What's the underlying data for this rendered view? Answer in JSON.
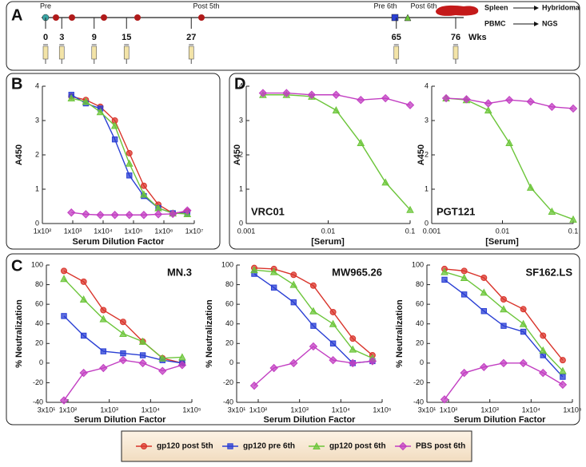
{
  "panel_labels": [
    "A",
    "B",
    "C",
    "D"
  ],
  "timeline": {
    "weeks": [
      0,
      3,
      9,
      15,
      27,
      65,
      76
    ],
    "unit": "Wks",
    "events": [
      {
        "text": "Pre",
        "color": "#3aa6a6"
      },
      {
        "text": "Post 5th",
        "color": "#d0302a"
      },
      {
        "text": "Pre 6th",
        "color": "#2a3fd4"
      },
      {
        "text": "Post 6th",
        "color": "#3e9a2a"
      }
    ],
    "outputs": [
      [
        "Spleen",
        "Hybridoma"
      ],
      [
        "PBMC",
        "NGS"
      ]
    ]
  },
  "legend": [
    {
      "name": "gp120 post 5th",
      "color": "#d9342b",
      "marker": "circle"
    },
    {
      "name": "gp120 pre 6th",
      "color": "#2a3fd4",
      "marker": "square"
    },
    {
      "name": "gp120 post 6th",
      "color": "#6cc53a",
      "marker": "triangle"
    },
    {
      "name": "PBS post 6th",
      "color": "#c23ec2",
      "marker": "diamond"
    }
  ],
  "chart_data": [
    {
      "type": "line",
      "xlog": true,
      "xlabel": "Serum Dilution Factor",
      "ylabel": "A450",
      "xlim": [
        100,
        10000000
      ],
      "ylim": [
        0,
        4
      ],
      "xticks": [
        {
          "value": 100,
          "label": "1x10²"
        },
        {
          "value": 1000,
          "label": "1x10³"
        },
        {
          "value": 10000,
          "label": "1x10⁴"
        },
        {
          "value": 100000,
          "label": "1x10⁵"
        },
        {
          "value": 1000000,
          "label": "1x10⁶"
        },
        {
          "value": 10000000,
          "label": "1x10⁷"
        }
      ],
      "yticks": [
        0,
        1,
        2,
        3,
        4
      ],
      "x": [
        900,
        2700,
        8100,
        24300,
        72900,
        218700,
        656100,
        1968300,
        5904900
      ],
      "series": [
        {
          "color": "#d9342b",
          "marker": "circle",
          "values": [
            3.7,
            3.6,
            3.4,
            3.0,
            2.05,
            1.1,
            0.55,
            0.3,
            0.35
          ]
        },
        {
          "color": "#2a3fd4",
          "marker": "square",
          "values": [
            3.75,
            3.5,
            3.35,
            2.45,
            1.4,
            0.8,
            0.45,
            0.3,
            0.3
          ]
        },
        {
          "color": "#6cc53a",
          "marker": "triangle",
          "values": [
            3.65,
            3.55,
            3.25,
            2.85,
            1.75,
            0.85,
            0.45,
            0.3,
            0.28
          ]
        },
        {
          "color": "#c23ec2",
          "marker": "diamond",
          "values": [
            0.32,
            0.27,
            0.25,
            0.25,
            0.25,
            0.25,
            0.27,
            0.28,
            0.38
          ]
        }
      ]
    },
    {
      "type": "line",
      "xlog": true,
      "title": "VRC01",
      "xlabel": "[Serum]",
      "ylabel": "A450",
      "xlim": [
        0.001,
        0.1
      ],
      "ylim": [
        0,
        4
      ],
      "xticks": [
        0.001,
        0.01,
        0.1
      ],
      "yticks": [
        0,
        1,
        2,
        3,
        4
      ],
      "x": [
        0.0016,
        0.0031,
        0.0063,
        0.0125,
        0.025,
        0.05,
        0.1
      ],
      "series": [
        {
          "color": "#6cc53a",
          "marker": "triangle",
          "values": [
            3.75,
            3.75,
            3.7,
            3.3,
            2.35,
            1.2,
            0.4
          ]
        },
        {
          "color": "#c23ec2",
          "marker": "diamond",
          "values": [
            3.8,
            3.8,
            3.75,
            3.75,
            3.6,
            3.65,
            3.45
          ]
        }
      ]
    },
    {
      "type": "line",
      "xlog": true,
      "title": "PGT121",
      "xlabel": "[Serum]",
      "ylabel": "A450",
      "xlim": [
        0.001,
        0.1
      ],
      "ylim": [
        0,
        4
      ],
      "xticks": [
        0.001,
        0.01,
        0.1
      ],
      "yticks": [
        0,
        1,
        2,
        3,
        4
      ],
      "x": [
        0.0016,
        0.0031,
        0.0063,
        0.0125,
        0.025,
        0.05,
        0.1
      ],
      "series": [
        {
          "color": "#6cc53a",
          "marker": "triangle",
          "values": [
            3.65,
            3.6,
            3.3,
            2.35,
            1.05,
            0.35,
            0.12
          ]
        },
        {
          "color": "#c23ec2",
          "marker": "diamond",
          "values": [
            3.65,
            3.62,
            3.5,
            3.6,
            3.55,
            3.4,
            3.35
          ]
        }
      ]
    },
    {
      "type": "line",
      "xlog": true,
      "title": "MN.3",
      "xlabel": "Serum Dilution Factor",
      "ylabel": "% Neutralization",
      "xlim": [
        30,
        100000
      ],
      "ylim": [
        -40,
        100
      ],
      "xticks": [
        {
          "value": 30,
          "label": "3x10¹"
        },
        {
          "value": 100,
          "label": "1x10²"
        },
        {
          "value": 1000,
          "label": "1x10³"
        },
        {
          "value": 10000,
          "label": "1x10⁴"
        },
        {
          "value": 100000,
          "label": "1x10⁵"
        }
      ],
      "yticks": [
        -40,
        -20,
        0,
        20,
        40,
        60,
        80,
        100
      ],
      "x": [
        80,
        240,
        720,
        2160,
        6480,
        19440,
        58320
      ],
      "series": [
        {
          "color": "#d9342b",
          "marker": "circle",
          "values": [
            94,
            83,
            54,
            42,
            22,
            5,
            0
          ]
        },
        {
          "color": "#2a3fd4",
          "marker": "square",
          "values": [
            48,
            28,
            12,
            10,
            8,
            3,
            0
          ]
        },
        {
          "color": "#6cc53a",
          "marker": "triangle",
          "values": [
            86,
            65,
            45,
            30,
            22,
            5,
            6
          ]
        },
        {
          "color": "#c23ec2",
          "marker": "diamond",
          "values": [
            -38,
            -10,
            -5,
            3,
            0,
            -8,
            -2
          ]
        }
      ]
    },
    {
      "type": "line",
      "xlog": true,
      "title": "MW965.26",
      "xlabel": "Serum Dilution Factor",
      "ylabel": "% Neutralization",
      "xlim": [
        30,
        100000
      ],
      "ylim": [
        -40,
        100
      ],
      "xticks": [
        {
          "value": 30,
          "label": "3x10¹"
        },
        {
          "value": 100,
          "label": "1x10²"
        },
        {
          "value": 1000,
          "label": "1x10³"
        },
        {
          "value": 10000,
          "label": "1x10⁴"
        },
        {
          "value": 100000,
          "label": "1x10⁵"
        }
      ],
      "yticks": [
        -40,
        -20,
        0,
        20,
        40,
        60,
        80,
        100
      ],
      "x": [
        80,
        240,
        720,
        2160,
        6480,
        19440,
        58320
      ],
      "series": [
        {
          "color": "#d9342b",
          "marker": "circle",
          "values": [
            97,
            96,
            90,
            79,
            52,
            25,
            8
          ]
        },
        {
          "color": "#2a3fd4",
          "marker": "square",
          "values": [
            91,
            77,
            62,
            38,
            20,
            0,
            2
          ]
        },
        {
          "color": "#6cc53a",
          "marker": "triangle",
          "values": [
            95,
            93,
            80,
            53,
            40,
            14,
            5
          ]
        },
        {
          "color": "#c23ec2",
          "marker": "diamond",
          "values": [
            -23,
            -5,
            0,
            17,
            3,
            0,
            2
          ]
        }
      ]
    },
    {
      "type": "line",
      "xlog": true,
      "title": "SF162.LS",
      "xlabel": "Serum Dilution Factor",
      "ylabel": "% Neutralization",
      "xlim": [
        30,
        100000
      ],
      "ylim": [
        -40,
        100
      ],
      "xticks": [
        {
          "value": 30,
          "label": "3x10¹"
        },
        {
          "value": 100,
          "label": "1x10²"
        },
        {
          "value": 1000,
          "label": "1x10³"
        },
        {
          "value": 10000,
          "label": "1x10⁴"
        },
        {
          "value": 100000,
          "label": "1x10⁵"
        }
      ],
      "yticks": [
        -40,
        -20,
        0,
        20,
        40,
        60,
        80,
        100
      ],
      "x": [
        80,
        240,
        720,
        2160,
        6480,
        19440,
        58320
      ],
      "series": [
        {
          "color": "#d9342b",
          "marker": "circle",
          "values": [
            96,
            94,
            87,
            65,
            55,
            28,
            3
          ]
        },
        {
          "color": "#2a3fd4",
          "marker": "square",
          "values": [
            85,
            70,
            53,
            38,
            32,
            8,
            -14
          ]
        },
        {
          "color": "#6cc53a",
          "marker": "triangle",
          "values": [
            93,
            87,
            72,
            55,
            40,
            13,
            -8
          ]
        },
        {
          "color": "#c23ec2",
          "marker": "diamond",
          "values": [
            -37,
            -10,
            -4,
            0,
            0,
            -10,
            -22
          ]
        }
      ]
    }
  ]
}
